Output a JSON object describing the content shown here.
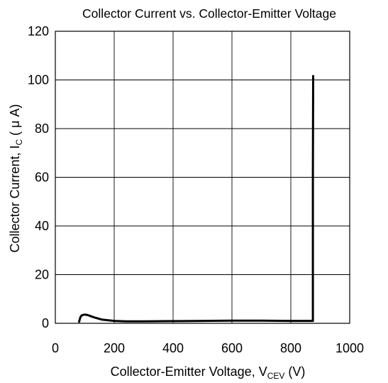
{
  "chart_data": {
    "type": "line",
    "title": "Collector Current vs. Collector-Emitter Voltage",
    "xlabel": {
      "prefix": "Collector-Emitter Voltage, V",
      "sub": "CEV",
      "suffix": " (V)"
    },
    "ylabel": {
      "prefix": "Collector Current, I",
      "sub": "C",
      "suffix": " ( μ A)"
    },
    "xlim": [
      0,
      1000
    ],
    "ylim": [
      0,
      120
    ],
    "xticks": [
      "0",
      "200",
      "400",
      "600",
      "800",
      "1000"
    ],
    "yticks": [
      "0",
      "20",
      "40",
      "60",
      "80",
      "100",
      "120"
    ],
    "grid": true,
    "line_color": "#000000",
    "series": [
      {
        "x": [
          80,
          85,
          90,
          100,
          110,
          130,
          160,
          200,
          240,
          300,
          400,
          500,
          600,
          700,
          800,
          860,
          875,
          875,
          876
        ],
        "y": [
          0.3,
          2.5,
          3.3,
          3.6,
          3.4,
          2.5,
          1.5,
          1.0,
          0.8,
          0.8,
          0.9,
          1.0,
          1.1,
          1.1,
          1.0,
          1.0,
          1.0,
          60,
          102
        ]
      }
    ]
  }
}
